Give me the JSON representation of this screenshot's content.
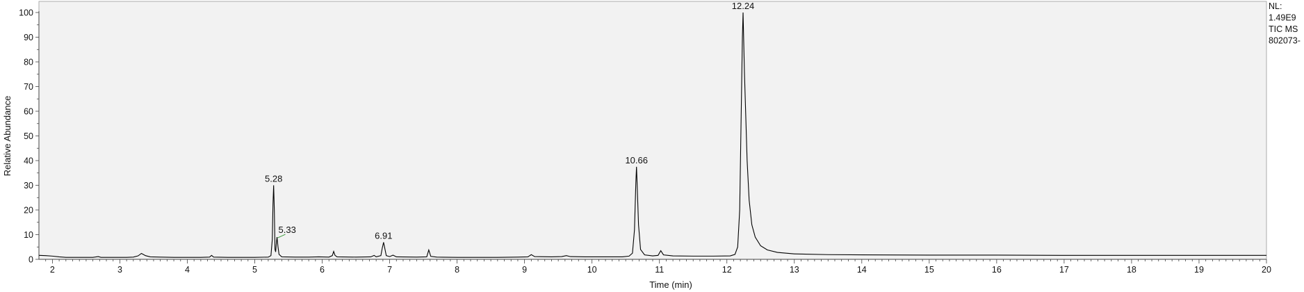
{
  "chart_data": {
    "type": "line",
    "title": "",
    "xlabel": "Time (min)",
    "ylabel": "Relative Abundance",
    "xlim": [
      1.8,
      20
    ],
    "ylim": [
      0,
      100
    ],
    "x_ticks": [
      "2",
      "3",
      "4",
      "5",
      "6",
      "7",
      "8",
      "9",
      "10",
      "11",
      "12",
      "13",
      "14",
      "15",
      "16",
      "17",
      "18",
      "19",
      "20"
    ],
    "y_ticks": [
      "0",
      "10",
      "20",
      "30",
      "40",
      "50",
      "60",
      "70",
      "80",
      "90",
      "100"
    ],
    "series": [
      {
        "values": [
          [
            1.8,
            1.6
          ],
          [
            1.9,
            1.5
          ],
          [
            2.0,
            1.3
          ],
          [
            2.1,
            1.0
          ],
          [
            2.2,
            0.8
          ],
          [
            2.4,
            0.8
          ],
          [
            2.6,
            0.8
          ],
          [
            2.68,
            1.1
          ],
          [
            2.72,
            0.8
          ],
          [
            2.9,
            0.8
          ],
          [
            3.1,
            0.8
          ],
          [
            3.2,
            0.9
          ],
          [
            3.27,
            1.4
          ],
          [
            3.32,
            2.4
          ],
          [
            3.38,
            1.5
          ],
          [
            3.45,
            1.0
          ],
          [
            3.6,
            0.9
          ],
          [
            3.8,
            0.8
          ],
          [
            4.0,
            0.8
          ],
          [
            4.2,
            0.8
          ],
          [
            4.33,
            0.9
          ],
          [
            4.36,
            1.6
          ],
          [
            4.39,
            0.9
          ],
          [
            4.6,
            0.8
          ],
          [
            4.8,
            0.8
          ],
          [
            5.0,
            0.8
          ],
          [
            5.2,
            0.9
          ],
          [
            5.24,
            1.5
          ],
          [
            5.26,
            8.0
          ],
          [
            5.27,
            22.0
          ],
          [
            5.28,
            30.0
          ],
          [
            5.29,
            20.0
          ],
          [
            5.3,
            4.0
          ],
          [
            5.31,
            3.0
          ],
          [
            5.32,
            6.5
          ],
          [
            5.33,
            9.0
          ],
          [
            5.345,
            5.0
          ],
          [
            5.36,
            2.0
          ],
          [
            5.4,
            1.0
          ],
          [
            5.6,
            0.9
          ],
          [
            5.8,
            0.9
          ],
          [
            5.95,
            1.0
          ],
          [
            6.1,
            0.9
          ],
          [
            6.15,
            1.5
          ],
          [
            6.17,
            3.2
          ],
          [
            6.19,
            1.6
          ],
          [
            6.22,
            1.0
          ],
          [
            6.5,
            0.9
          ],
          [
            6.72,
            1.0
          ],
          [
            6.77,
            1.6
          ],
          [
            6.8,
            1.0
          ],
          [
            6.87,
            1.5
          ],
          [
            6.89,
            4.5
          ],
          [
            6.91,
            6.9
          ],
          [
            6.93,
            4.2
          ],
          [
            6.95,
            1.5
          ],
          [
            7.0,
            1.1
          ],
          [
            7.05,
            1.7
          ],
          [
            7.1,
            1.0
          ],
          [
            7.4,
            0.9
          ],
          [
            7.55,
            1.0
          ],
          [
            7.58,
            3.8
          ],
          [
            7.61,
            1.2
          ],
          [
            7.7,
            0.9
          ],
          [
            8.0,
            0.8
          ],
          [
            8.3,
            0.8
          ],
          [
            8.6,
            0.8
          ],
          [
            8.9,
            0.9
          ],
          [
            9.05,
            1.0
          ],
          [
            9.1,
            1.9
          ],
          [
            9.15,
            1.1
          ],
          [
            9.4,
            1.0
          ],
          [
            9.55,
            1.1
          ],
          [
            9.62,
            1.5
          ],
          [
            9.68,
            1.1
          ],
          [
            9.9,
            1.0
          ],
          [
            10.2,
            1.0
          ],
          [
            10.45,
            1.0
          ],
          [
            10.55,
            1.3
          ],
          [
            10.6,
            2.5
          ],
          [
            10.63,
            12.0
          ],
          [
            10.65,
            31.0
          ],
          [
            10.66,
            37.5
          ],
          [
            10.67,
            30.0
          ],
          [
            10.69,
            14.0
          ],
          [
            10.72,
            4.0
          ],
          [
            10.78,
            1.8
          ],
          [
            10.9,
            1.4
          ],
          [
            10.98,
            1.6
          ],
          [
            11.02,
            3.5
          ],
          [
            11.06,
            1.8
          ],
          [
            11.2,
            1.4
          ],
          [
            11.5,
            1.3
          ],
          [
            11.8,
            1.3
          ],
          [
            12.05,
            1.4
          ],
          [
            12.12,
            2.0
          ],
          [
            12.16,
            5.0
          ],
          [
            12.19,
            20.0
          ],
          [
            12.21,
            55.0
          ],
          [
            12.23,
            90.0
          ],
          [
            12.24,
            100.0
          ],
          [
            12.25,
            88.0
          ],
          [
            12.26,
            76.0
          ],
          [
            12.28,
            58.0
          ],
          [
            12.3,
            40.0
          ],
          [
            12.33,
            24.0
          ],
          [
            12.37,
            14.0
          ],
          [
            12.42,
            9.0
          ],
          [
            12.5,
            5.5
          ],
          [
            12.6,
            3.8
          ],
          [
            12.75,
            2.8
          ],
          [
            13.0,
            2.2
          ],
          [
            13.5,
            1.9
          ],
          [
            14.0,
            1.8
          ],
          [
            15.0,
            1.7
          ],
          [
            16.0,
            1.7
          ],
          [
            17.0,
            1.6
          ],
          [
            18.0,
            1.6
          ],
          [
            19.0,
            1.6
          ],
          [
            20.0,
            1.6
          ]
        ]
      }
    ],
    "peak_labels": [
      {
        "x": 5.28,
        "y": 30.0,
        "text": "5.28"
      },
      {
        "x": 5.33,
        "y": 9.0,
        "text": "5.33"
      },
      {
        "x": 6.91,
        "y": 6.9,
        "text": "6.91"
      },
      {
        "x": 10.66,
        "y": 37.5,
        "text": "10.66"
      },
      {
        "x": 12.24,
        "y": 100.0,
        "text": "12.24"
      }
    ],
    "info_lines": [
      "NL:",
      "1.49E9",
      "TIC  MS",
      "802073-"
    ],
    "colors": {
      "plot_background": "#f2f2f2",
      "trace": "#000000",
      "axis": "#444444",
      "leader": "#3a9a3a"
    }
  }
}
